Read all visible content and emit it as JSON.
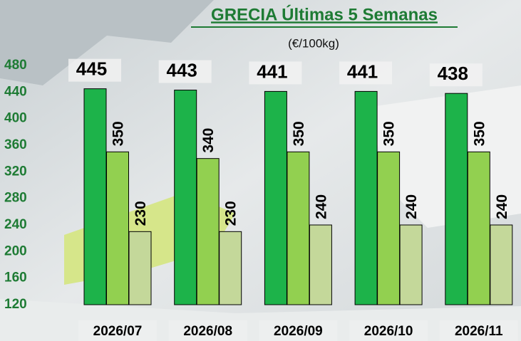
{
  "chart_data": {
    "type": "bar",
    "title": "GRECIA Últimas 5 Semanas",
    "subtitle": "(€/100kg)",
    "categories": [
      "2026/07",
      "2026/08",
      "2026/09",
      "2026/10",
      "2026/11"
    ],
    "series": [
      {
        "color": "#1db34a",
        "values": [
          445,
          443,
          441,
          441,
          438
        ]
      },
      {
        "color": "#92d050",
        "values": [
          350,
          340,
          350,
          350,
          350
        ]
      },
      {
        "color": "#c4d89a",
        "values": [
          230,
          230,
          240,
          240,
          240
        ]
      }
    ],
    "ylim": [
      120,
      480
    ],
    "yticks": [
      120,
      160,
      200,
      240,
      280,
      320,
      360,
      400,
      440,
      480
    ]
  }
}
